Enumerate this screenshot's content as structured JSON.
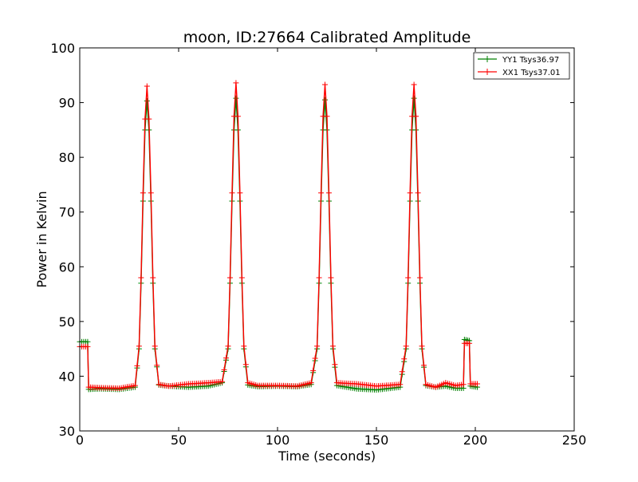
{
  "chart_data": {
    "type": "line",
    "title": "moon, ID:27664 Calibrated Amplitude",
    "xlabel": "Time (seconds)",
    "ylabel": "Power in Kelvin",
    "xlim": [
      0,
      250
    ],
    "ylim": [
      30,
      100
    ],
    "xticks": [
      "0",
      "50",
      "100",
      "150",
      "200",
      "250"
    ],
    "yticks": [
      "30",
      "40",
      "50",
      "60",
      "70",
      "80",
      "90",
      "100"
    ],
    "grid": false,
    "legend_position": "top-right",
    "marker": "+",
    "series": [
      {
        "name": "YY1 Tsys36.97",
        "color": "#008000",
        "points": [
          [
            0,
            46.3
          ],
          [
            4,
            46.3
          ],
          [
            4.5,
            37.6
          ],
          [
            10,
            37.7
          ],
          [
            20,
            37.6
          ],
          [
            28,
            38.0
          ],
          [
            30,
            45.0
          ],
          [
            31,
            57.0
          ],
          [
            32,
            72.0
          ],
          [
            33,
            85.0
          ],
          [
            34,
            90.3
          ],
          [
            35,
            85.0
          ],
          [
            36,
            72.0
          ],
          [
            37,
            57.0
          ],
          [
            38,
            45.0
          ],
          [
            40,
            38.4
          ],
          [
            45,
            38.2
          ],
          [
            55,
            38.0
          ],
          [
            65,
            38.2
          ],
          [
            72,
            38.8
          ],
          [
            75,
            45.0
          ],
          [
            76,
            57.0
          ],
          [
            77,
            72.0
          ],
          [
            78,
            85.0
          ],
          [
            79,
            90.8
          ],
          [
            80,
            85.0
          ],
          [
            81,
            72.0
          ],
          [
            82,
            57.0
          ],
          [
            83,
            45.0
          ],
          [
            85,
            38.4
          ],
          [
            90,
            38.1
          ],
          [
            100,
            38.2
          ],
          [
            110,
            38.1
          ],
          [
            117,
            38.5
          ],
          [
            120,
            45.0
          ],
          [
            121,
            57.0
          ],
          [
            122,
            72.0
          ],
          [
            123,
            85.0
          ],
          [
            124,
            90.5
          ],
          [
            125,
            85.0
          ],
          [
            126,
            72.0
          ],
          [
            127,
            57.0
          ],
          [
            128,
            45.0
          ],
          [
            130,
            38.3
          ],
          [
            140,
            37.7
          ],
          [
            150,
            37.5
          ],
          [
            162,
            38.0
          ],
          [
            165,
            45.0
          ],
          [
            166,
            57.0
          ],
          [
            167,
            72.0
          ],
          [
            168,
            85.0
          ],
          [
            169,
            90.8
          ],
          [
            170,
            85.0
          ],
          [
            171,
            72.0
          ],
          [
            172,
            57.0
          ],
          [
            173,
            45.0
          ],
          [
            175,
            38.3
          ],
          [
            180,
            38.0
          ],
          [
            185,
            38.2
          ],
          [
            190,
            37.8
          ],
          [
            194,
            37.8
          ],
          [
            194.5,
            46.7
          ],
          [
            197,
            46.5
          ],
          [
            197.5,
            38.2
          ],
          [
            201,
            38.0
          ]
        ]
      },
      {
        "name": "XX1 Tsys37.01",
        "color": "#ff0000",
        "points": [
          [
            0,
            45.4
          ],
          [
            4,
            45.4
          ],
          [
            4.5,
            38.0
          ],
          [
            10,
            37.9
          ],
          [
            20,
            37.8
          ],
          [
            28,
            38.3
          ],
          [
            30,
            45.5
          ],
          [
            31,
            58.0
          ],
          [
            32,
            73.5
          ],
          [
            33,
            87.0
          ],
          [
            34,
            93.0
          ],
          [
            35,
            87.0
          ],
          [
            36,
            73.5
          ],
          [
            37,
            58.0
          ],
          [
            38,
            45.5
          ],
          [
            40,
            38.5
          ],
          [
            45,
            38.2
          ],
          [
            55,
            38.6
          ],
          [
            65,
            38.8
          ],
          [
            72,
            39.0
          ],
          [
            75,
            45.5
          ],
          [
            76,
            58.0
          ],
          [
            77,
            73.5
          ],
          [
            78,
            87.5
          ],
          [
            79,
            93.6
          ],
          [
            80,
            87.5
          ],
          [
            81,
            73.5
          ],
          [
            82,
            58.0
          ],
          [
            83,
            45.5
          ],
          [
            85,
            38.8
          ],
          [
            90,
            38.3
          ],
          [
            100,
            38.3
          ],
          [
            110,
            38.2
          ],
          [
            117,
            38.8
          ],
          [
            120,
            45.5
          ],
          [
            121,
            58.0
          ],
          [
            122,
            73.5
          ],
          [
            123,
            87.5
          ],
          [
            124,
            93.3
          ],
          [
            125,
            87.5
          ],
          [
            126,
            73.5
          ],
          [
            127,
            58.0
          ],
          [
            128,
            45.5
          ],
          [
            130,
            38.8
          ],
          [
            140,
            38.6
          ],
          [
            150,
            38.2
          ],
          [
            162,
            38.5
          ],
          [
            165,
            45.5
          ],
          [
            166,
            58.0
          ],
          [
            167,
            73.5
          ],
          [
            168,
            87.5
          ],
          [
            169,
            93.3
          ],
          [
            170,
            87.5
          ],
          [
            171,
            73.5
          ],
          [
            172,
            58.0
          ],
          [
            173,
            45.5
          ],
          [
            175,
            38.5
          ],
          [
            180,
            38.0
          ],
          [
            185,
            38.8
          ],
          [
            190,
            38.3
          ],
          [
            194,
            38.5
          ],
          [
            194.5,
            46.0
          ],
          [
            197,
            46.0
          ],
          [
            197.5,
            38.6
          ],
          [
            201,
            38.6
          ]
        ]
      }
    ]
  }
}
